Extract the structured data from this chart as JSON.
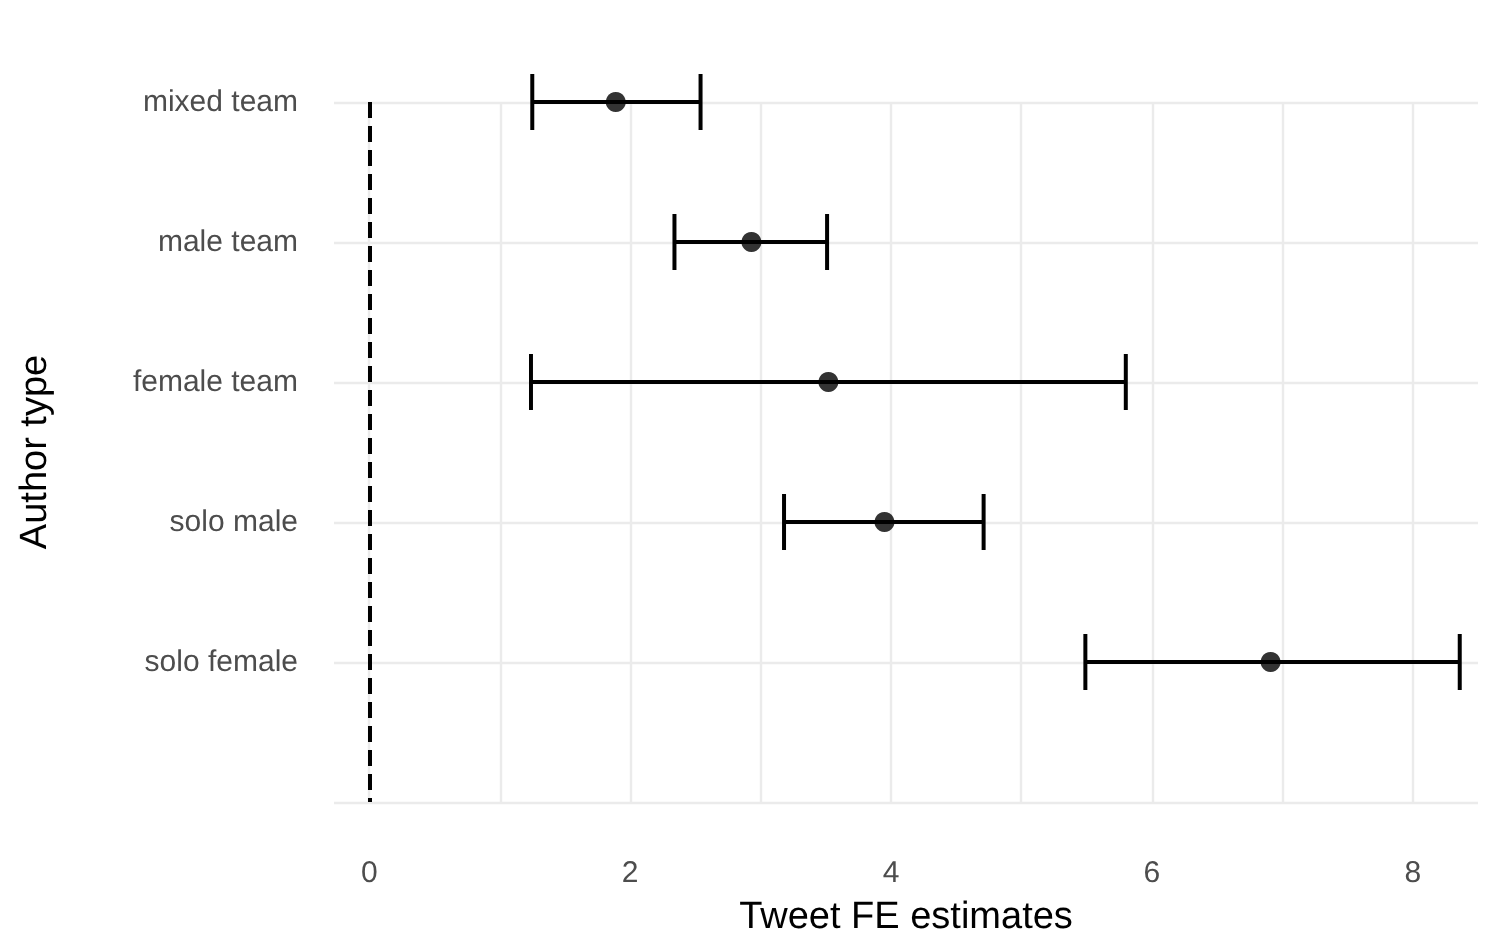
{
  "chart_data": {
    "type": "scatter",
    "orientation": "horizontal",
    "xlabel": "Tweet FE estimates",
    "ylabel": "Author type",
    "categories": [
      "mixed team",
      "male team",
      "female team",
      "solo male",
      "solo female",
      null
    ],
    "values": [
      1.89,
      2.93,
      3.52,
      3.95,
      6.91,
      null
    ],
    "errors": [
      [
        1.25,
        2.54
      ],
      [
        2.34,
        3.51
      ],
      [
        1.24,
        5.8
      ],
      [
        3.18,
        4.71
      ],
      [
        5.49,
        8.36
      ],
      null
    ],
    "color": "#000000",
    "marker": "circle",
    "xlim": [
      -0.27,
      8.5
    ],
    "xticks": [
      0,
      {
        "value": 1,
        "label": null
      },
      2,
      {
        "value": 3,
        "label": null
      },
      4,
      {
        "value": 5,
        "label": null
      },
      6,
      {
        "value": 7,
        "label": null
      },
      8
    ],
    "grid": true,
    "ref_lines": [
      {
        "axis": "x",
        "value": 0,
        "color": "#000000",
        "line_style": "dashed"
      }
    ]
  }
}
